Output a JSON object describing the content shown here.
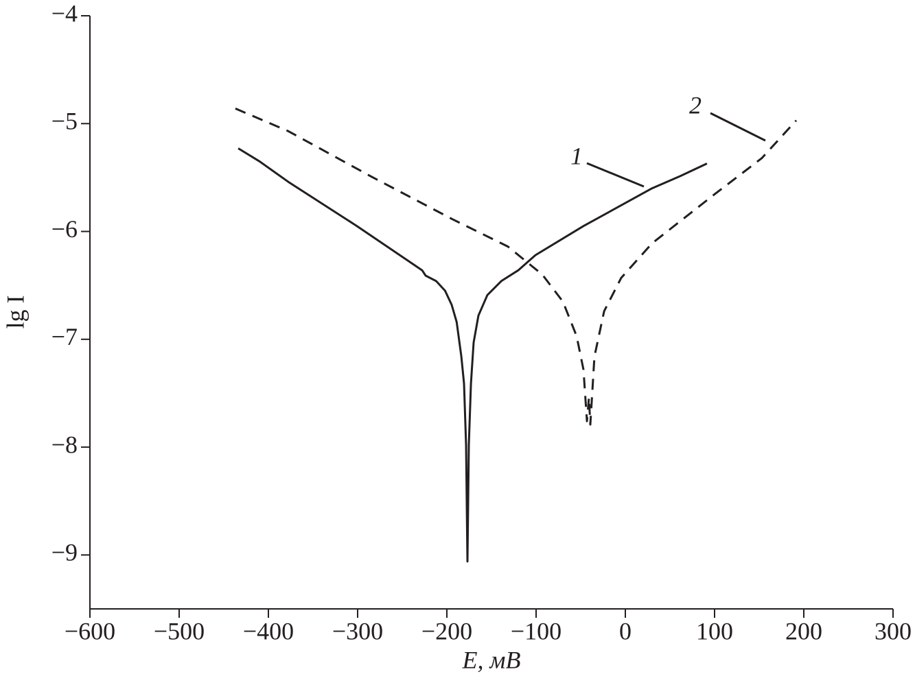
{
  "chart_data": {
    "type": "line",
    "x_label": "E, мВ",
    "y_label": "lg I",
    "xlim": [
      -600,
      300
    ],
    "ylim": [
      -9.5,
      -4
    ],
    "xticks": [
      {
        "value": -600,
        "label": "−600"
      },
      {
        "value": -500,
        "label": "−500"
      },
      {
        "value": -400,
        "label": "−400"
      },
      {
        "value": -300,
        "label": "−300"
      },
      {
        "value": -200,
        "label": "−200"
      },
      {
        "value": -100,
        "label": "−100"
      },
      0,
      100,
      200,
      300
    ],
    "yticks": [
      {
        "value": -9,
        "label": "−9"
      },
      {
        "value": -8,
        "label": "−8"
      },
      {
        "value": -7,
        "label": "−7"
      },
      {
        "value": -6,
        "label": "−6"
      },
      {
        "value": -5,
        "label": "−5"
      },
      {
        "value": -4,
        "label": "−4"
      }
    ],
    "series": [
      {
        "name": "1",
        "color": "#231f20",
        "line_style": "solid",
        "x": [
          -433.8,
          -410,
          -377.7,
          -300.8,
          -227.7,
          -223.8,
          -212,
          -202,
          -194.6,
          -189,
          -183.8,
          -180.8,
          -178.5,
          -176.9,
          -175.4,
          -173,
          -170,
          -164.6,
          -154.6,
          -139,
          -120,
          -100.8,
          -46.9,
          30,
          60.8,
          91.5
        ],
        "values": [
          -5.23,
          -5.35,
          -5.54,
          -5.95,
          -6.36,
          -6.41,
          -6.46,
          -6.55,
          -6.68,
          -6.84,
          -7.16,
          -7.41,
          -7.98,
          -9.06,
          -7.98,
          -7.41,
          -7.03,
          -6.78,
          -6.59,
          -6.46,
          -6.36,
          -6.22,
          -5.95,
          -5.6,
          -5.49,
          -5.37
        ]
      },
      {
        "name": "2",
        "color": "#231f20",
        "line_style": "dashed",
        "x": [
          -437,
          -377.7,
          -285,
          -193,
          -131.5,
          -93,
          -70,
          -54.6,
          -46.9,
          -43,
          -40.8,
          -39.2,
          -34.6,
          -23.8,
          -4.6,
          30,
          99.2,
          153,
          191.5
        ],
        "values": [
          -4.86,
          -5.07,
          -5.49,
          -5.89,
          -6.14,
          -6.4,
          -6.65,
          -6.97,
          -7.28,
          -7.76,
          -7.54,
          -7.79,
          -7.16,
          -6.74,
          -6.43,
          -6.11,
          -5.66,
          -5.32,
          -4.97
        ]
      }
    ]
  }
}
